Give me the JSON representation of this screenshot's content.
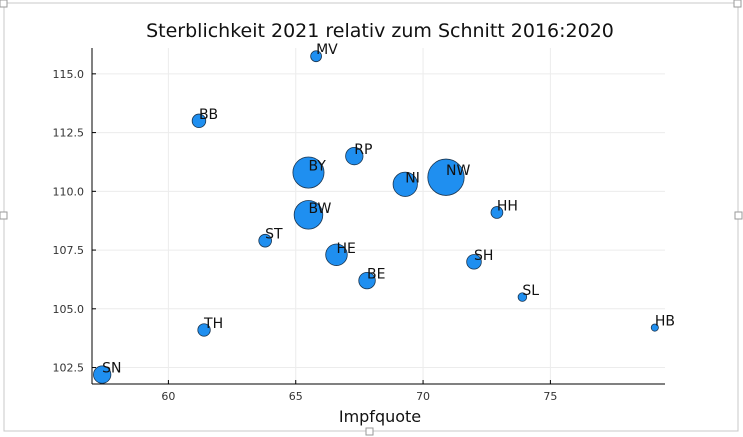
{
  "chart_data": {
    "type": "scatter",
    "title": "Sterblichkeit 2021 relativ zum Schnitt 2016:2020",
    "xlabel": "Impfquote",
    "ylabel": "",
    "xlim": [
      57,
      79.5
    ],
    "ylim": [
      101.8,
      116.1
    ],
    "x_ticks": [
      60,
      65,
      70,
      75
    ],
    "y_ticks": [
      102.5,
      105.0,
      107.5,
      110.0,
      112.5,
      115.0
    ],
    "x_tick_labels": [
      "60",
      "65",
      "70",
      "75"
    ],
    "y_tick_labels": [
      "102.5",
      "105.0",
      "107.5",
      "110.0",
      "112.5",
      "115.0"
    ],
    "grid": true,
    "legend": "none",
    "marker_color": "#1f8ff0",
    "marker_edge_color": "#1a3550",
    "points": [
      {
        "label": "MV",
        "x": 65.8,
        "y": 115.75,
        "size": 1.6
      },
      {
        "label": "BB",
        "x": 61.2,
        "y": 113.0,
        "size": 2.5
      },
      {
        "label": "RP",
        "x": 67.3,
        "y": 111.5,
        "size": 4.1
      },
      {
        "label": "BY",
        "x": 65.5,
        "y": 110.8,
        "size": 13.1
      },
      {
        "label": "NI",
        "x": 69.3,
        "y": 110.3,
        "size": 8.0
      },
      {
        "label": "NW",
        "x": 70.9,
        "y": 110.6,
        "size": 17.9
      },
      {
        "label": "HH",
        "x": 72.9,
        "y": 109.1,
        "size": 1.9
      },
      {
        "label": "BW",
        "x": 65.5,
        "y": 109.0,
        "size": 11.1
      },
      {
        "label": "ST",
        "x": 63.8,
        "y": 107.9,
        "size": 2.2
      },
      {
        "label": "HE",
        "x": 66.6,
        "y": 107.3,
        "size": 6.3
      },
      {
        "label": "SH",
        "x": 72.0,
        "y": 107.0,
        "size": 2.9
      },
      {
        "label": "BE",
        "x": 67.8,
        "y": 106.2,
        "size": 3.7
      },
      {
        "label": "SL",
        "x": 73.9,
        "y": 105.5,
        "size": 1.0
      },
      {
        "label": "HB",
        "x": 79.1,
        "y": 104.2,
        "size": 0.7
      },
      {
        "label": "TH",
        "x": 61.4,
        "y": 104.1,
        "size": 2.1
      },
      {
        "label": "SN",
        "x": 57.4,
        "y": 102.2,
        "size": 4.1
      }
    ]
  }
}
